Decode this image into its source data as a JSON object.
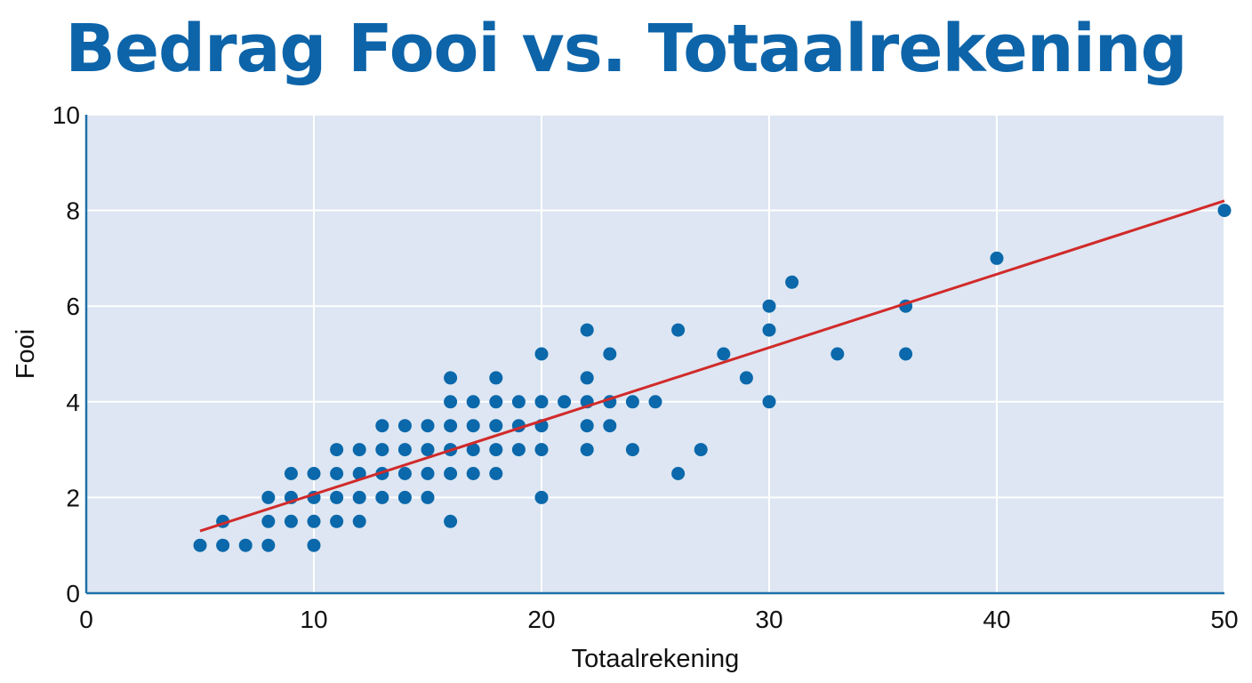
{
  "chart_data": {
    "type": "scatter",
    "title": "Bedrag Fooi vs. Totaalrekening",
    "xlabel": "Totaalrekening",
    "ylabel": "Fooi",
    "xlim": [
      0,
      50
    ],
    "ylim": [
      0,
      10
    ],
    "xticks": [
      0,
      10,
      20,
      30,
      40,
      50
    ],
    "yticks": [
      0,
      2,
      4,
      6,
      8,
      10
    ],
    "grid": true,
    "colors": {
      "points": "#0a68ab",
      "trendline": "#d12a2a",
      "background": "#dde6f2",
      "title": "#0d64a9",
      "axis": "#1f6fa8"
    },
    "points": [
      [
        5,
        1
      ],
      [
        6,
        1
      ],
      [
        7,
        1
      ],
      [
        8,
        1
      ],
      [
        10,
        1
      ],
      [
        6,
        1.5
      ],
      [
        8,
        1.5
      ],
      [
        9,
        1.5
      ],
      [
        10,
        1.5
      ],
      [
        11,
        1.5
      ],
      [
        12,
        1.5
      ],
      [
        16,
        1.5
      ],
      [
        8,
        2
      ],
      [
        9,
        2
      ],
      [
        10,
        2
      ],
      [
        11,
        2
      ],
      [
        12,
        2
      ],
      [
        13,
        2
      ],
      [
        14,
        2
      ],
      [
        15,
        2
      ],
      [
        20,
        2
      ],
      [
        9,
        2.5
      ],
      [
        10,
        2.5
      ],
      [
        11,
        2.5
      ],
      [
        12,
        2.5
      ],
      [
        13,
        2.5
      ],
      [
        14,
        2.5
      ],
      [
        15,
        2.5
      ],
      [
        16,
        2.5
      ],
      [
        17,
        2.5
      ],
      [
        18,
        2.5
      ],
      [
        26,
        2.5
      ],
      [
        11,
        3
      ],
      [
        12,
        3
      ],
      [
        13,
        3
      ],
      [
        14,
        3
      ],
      [
        15,
        3
      ],
      [
        16,
        3
      ],
      [
        17,
        3
      ],
      [
        18,
        3
      ],
      [
        19,
        3
      ],
      [
        20,
        3
      ],
      [
        22,
        3
      ],
      [
        24,
        3
      ],
      [
        27,
        3
      ],
      [
        13,
        3.5
      ],
      [
        14,
        3.5
      ],
      [
        15,
        3.5
      ],
      [
        16,
        3.5
      ],
      [
        17,
        3.5
      ],
      [
        18,
        3.5
      ],
      [
        19,
        3.5
      ],
      [
        20,
        3.5
      ],
      [
        22,
        3.5
      ],
      [
        23,
        3.5
      ],
      [
        16,
        4
      ],
      [
        17,
        4
      ],
      [
        18,
        4
      ],
      [
        19,
        4
      ],
      [
        20,
        4
      ],
      [
        21,
        4
      ],
      [
        22,
        4
      ],
      [
        23,
        4
      ],
      [
        24,
        4
      ],
      [
        25,
        4
      ],
      [
        30,
        4
      ],
      [
        16,
        4.5
      ],
      [
        18,
        4.5
      ],
      [
        22,
        4.5
      ],
      [
        29,
        4.5
      ],
      [
        20,
        5
      ],
      [
        23,
        5
      ],
      [
        28,
        5
      ],
      [
        33,
        5
      ],
      [
        36,
        5
      ],
      [
        22,
        5.5
      ],
      [
        26,
        5.5
      ],
      [
        30,
        5.5
      ],
      [
        30,
        6
      ],
      [
        36,
        6
      ],
      [
        31,
        6.5
      ],
      [
        40,
        7
      ],
      [
        50,
        8
      ]
    ],
    "trendline": {
      "x": [
        5,
        50
      ],
      "y": [
        1.3,
        8.2
      ]
    }
  }
}
